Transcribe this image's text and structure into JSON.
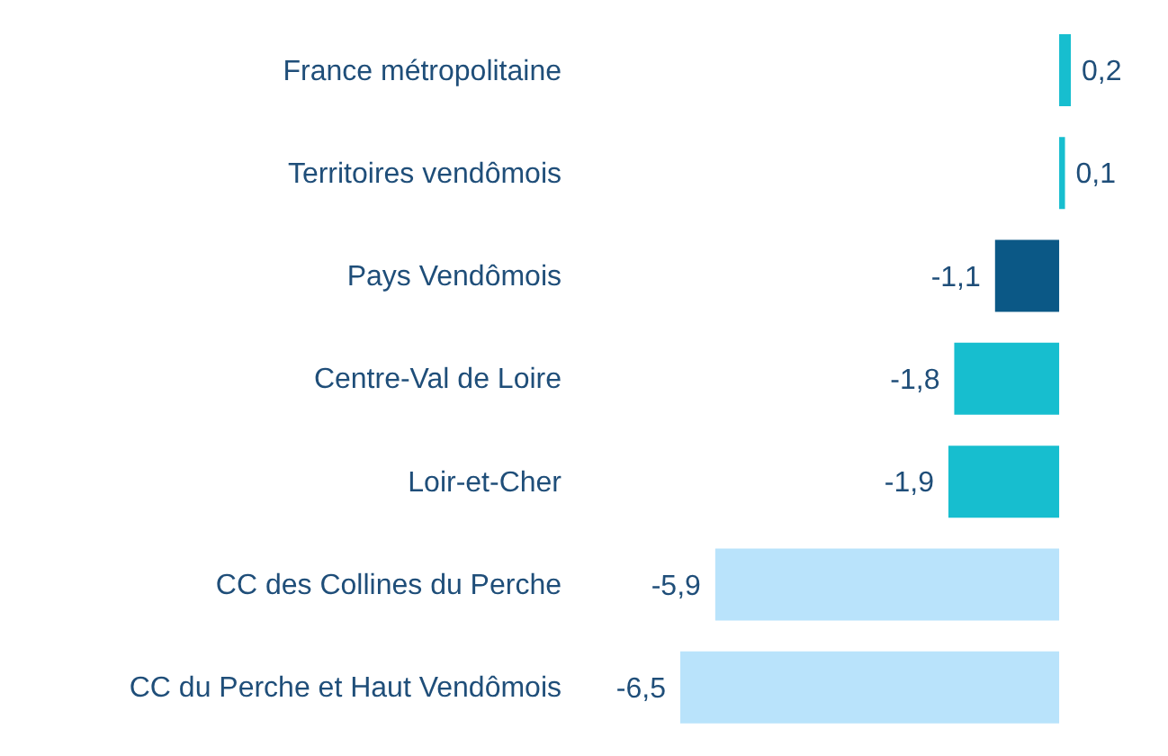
{
  "chart_data": {
    "type": "bar",
    "orientation": "horizontal",
    "categories": [
      "France métropolitaine",
      "Territoires vendômois",
      "Pays Vendômois",
      "Centre-Val de Loire",
      "Loir-et-Cher",
      "CC des Collines du Perche",
      "CC du Perche et Haut Vendômois"
    ],
    "values": [
      0.2,
      0.1,
      -1.1,
      -1.8,
      -1.9,
      -5.9,
      -6.5
    ],
    "value_labels": [
      "0,2",
      "0,1",
      "-1,1",
      "-1,8",
      "-1,9",
      "-5,9",
      "-6,5"
    ],
    "colors": [
      "#17becf",
      "#17becf",
      "#0b5886",
      "#17becf",
      "#17becf",
      "#b9e3fb",
      "#b9e3fb"
    ]
  }
}
